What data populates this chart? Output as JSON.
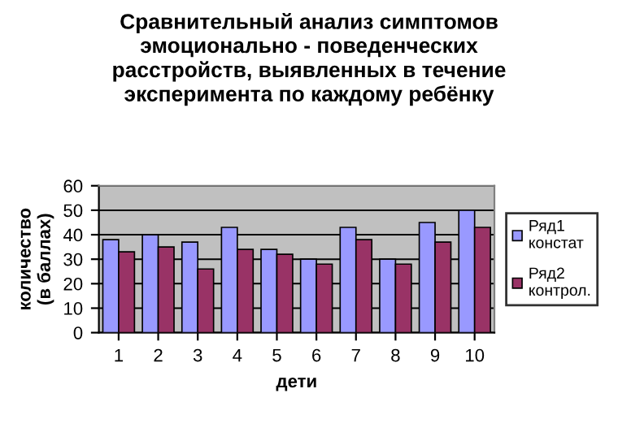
{
  "chart_data": {
    "type": "bar",
    "title": "Сравнительный анализ симптомов\nэмоционально - поведенческих\nрасстройств, выявленных в течение\nэксперимента по каждому ребёнку",
    "xlabel": "дети",
    "ylabel": "количество\n(в баллах)",
    "categories": [
      "1",
      "2",
      "3",
      "4",
      "5",
      "6",
      "7",
      "8",
      "9",
      "10"
    ],
    "series": [
      {
        "name": "Ряд1\nконстат",
        "color": "#9999ff",
        "values": [
          38,
          40,
          37,
          43,
          34,
          30,
          43,
          30,
          45,
          50
        ]
      },
      {
        "name": "Ряд2\nконтрол.",
        "color": "#993366",
        "values": [
          33,
          35,
          26,
          34,
          32,
          28,
          38,
          28,
          37,
          43
        ]
      }
    ],
    "ylim": [
      0,
      60
    ],
    "yticks": [
      0,
      10,
      20,
      30,
      40,
      50,
      60
    ],
    "grid": "y",
    "legend": "right"
  }
}
